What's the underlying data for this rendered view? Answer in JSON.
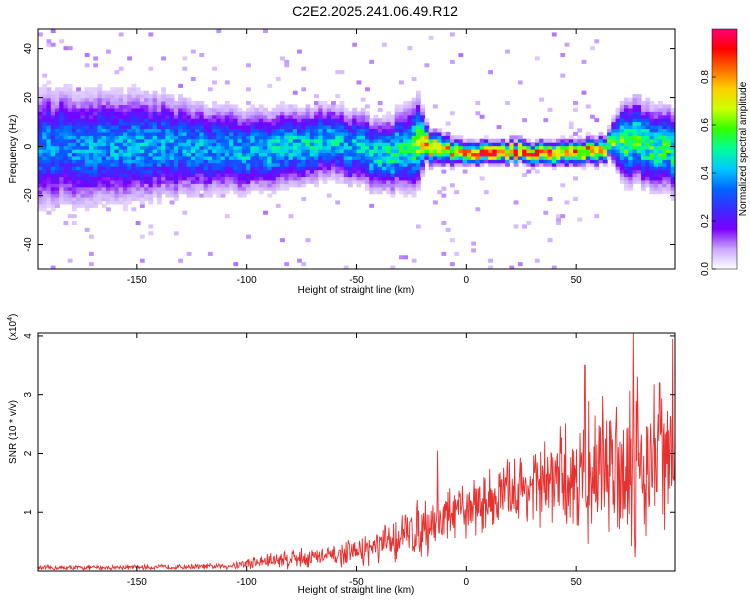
{
  "figure": {
    "title": "C2E2.2025.241.06.49.R12"
  },
  "chart_data": [
    {
      "type": "heatmap",
      "title": "C2E2.2025.241.06.49.R12",
      "xlabel": "Height of straight line (km)",
      "ylabel": "Frequency (Hz)",
      "xlim": [
        -195,
        95
      ],
      "ylim": [
        -50,
        48
      ],
      "xticks": [
        -150,
        -100,
        -50,
        0,
        50
      ],
      "yticks": [
        -40,
        -20,
        0,
        20,
        40
      ],
      "colorbar": {
        "label": "Normalized spectral amplitude",
        "range": [
          0,
          1
        ],
        "ticks": [
          "0.0",
          "0.2",
          "0.4",
          "0.6",
          "0.8"
        ],
        "colors": [
          "#ffffff",
          "#c9a6ff",
          "#7a00ff",
          "#3a2bff",
          "#0066ff",
          "#00c8ff",
          "#00ff9c",
          "#33ff00",
          "#ccff00",
          "#ffd000",
          "#ff6a00",
          "#ff0000",
          "#ff0078"
        ]
      },
      "ridge": [
        {
          "x": -190,
          "f": 0
        },
        {
          "x": -170,
          "f": 0
        },
        {
          "x": -150,
          "f": 0
        },
        {
          "x": -130,
          "f": 0
        },
        {
          "x": -110,
          "f": -1
        },
        {
          "x": -90,
          "f": -2
        },
        {
          "x": -75,
          "f": 1
        },
        {
          "x": -60,
          "f": 2
        },
        {
          "x": -45,
          "f": -2
        },
        {
          "x": -35,
          "f": -3
        },
        {
          "x": -25,
          "f": 1
        },
        {
          "x": -20,
          "f": 1
        },
        {
          "x": -10,
          "f": -1
        },
        {
          "x": 0,
          "f": -2
        },
        {
          "x": 20,
          "f": -2
        },
        {
          "x": 40,
          "f": -2
        },
        {
          "x": 60,
          "f": -2
        },
        {
          "x": 70,
          "f": 3
        },
        {
          "x": 80,
          "f": 2
        },
        {
          "x": 95,
          "f": -2
        }
      ],
      "bandwidth_hz": [
        {
          "x": -190,
          "w": 26
        },
        {
          "x": -150,
          "w": 24
        },
        {
          "x": -120,
          "w": 20
        },
        {
          "x": -100,
          "w": 18
        },
        {
          "x": -60,
          "w": 16
        },
        {
          "x": -35,
          "w": 16
        },
        {
          "x": -22,
          "w": 20
        },
        {
          "x": -18,
          "w": 8
        },
        {
          "x": 0,
          "w": 5
        },
        {
          "x": 30,
          "w": 5
        },
        {
          "x": 65,
          "w": 6
        },
        {
          "x": 72,
          "w": 18
        },
        {
          "x": 95,
          "w": 18
        }
      ],
      "peak_amplitude": [
        {
          "x": -190,
          "a": 0.35
        },
        {
          "x": -150,
          "a": 0.4
        },
        {
          "x": -120,
          "a": 0.38
        },
        {
          "x": -80,
          "a": 0.45
        },
        {
          "x": -50,
          "a": 0.42
        },
        {
          "x": -25,
          "a": 0.5
        },
        {
          "x": -15,
          "a": 0.85
        },
        {
          "x": -5,
          "a": 0.7
        },
        {
          "x": 5,
          "a": 0.92
        },
        {
          "x": 20,
          "a": 0.9
        },
        {
          "x": 40,
          "a": 0.85
        },
        {
          "x": 60,
          "a": 0.75
        },
        {
          "x": 70,
          "a": 0.55
        },
        {
          "x": 95,
          "a": 0.5
        }
      ]
    },
    {
      "type": "line",
      "xlabel": "Height of straight line (km)",
      "ylabel": "SNR (10 * v/v)",
      "yscale_label": "(x10",
      "yscale_exp": "4",
      "yscale_close": ")",
      "xlim": [
        -195,
        95
      ],
      "ylim": [
        0,
        4.05
      ],
      "xticks": [
        -150,
        -100,
        -50,
        0,
        50
      ],
      "yticks": [
        1,
        2,
        3,
        4
      ],
      "color": "#e8302f",
      "envelope": [
        {
          "x": -195,
          "mean": 0.05,
          "amp": 0.05
        },
        {
          "x": -130,
          "mean": 0.07,
          "amp": 0.05
        },
        {
          "x": -110,
          "mean": 0.08,
          "amp": 0.06
        },
        {
          "x": -95,
          "mean": 0.15,
          "amp": 0.15
        },
        {
          "x": -80,
          "mean": 0.22,
          "amp": 0.22
        },
        {
          "x": -60,
          "mean": 0.25,
          "amp": 0.2
        },
        {
          "x": -40,
          "mean": 0.4,
          "amp": 0.35
        },
        {
          "x": -20,
          "mean": 0.75,
          "amp": 0.6
        },
        {
          "x": 0,
          "mean": 1.05,
          "amp": 0.55
        },
        {
          "x": 20,
          "mean": 1.35,
          "amp": 0.7
        },
        {
          "x": 40,
          "mean": 1.5,
          "amp": 0.95
        },
        {
          "x": 60,
          "mean": 1.7,
          "amp": 1.4
        },
        {
          "x": 75,
          "mean": 1.9,
          "amp": 1.8
        },
        {
          "x": 95,
          "mean": 1.8,
          "amp": 1.7
        }
      ],
      "spikes": [
        {
          "x": -13,
          "y": 2.05
        },
        {
          "x": 76,
          "y": 4.05
        },
        {
          "x": 94,
          "y": 3.95
        },
        {
          "x": 54,
          "y": 3.5
        },
        {
          "x": 88,
          "y": 3.2
        }
      ]
    }
  ]
}
